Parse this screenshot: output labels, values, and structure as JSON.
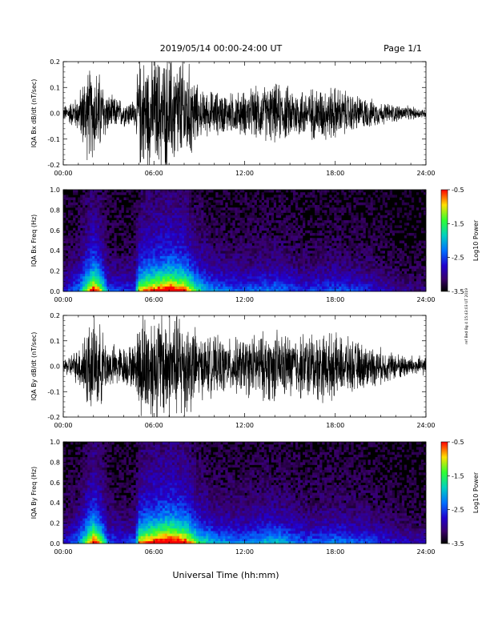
{
  "header": {
    "title": "2019/05/14   00:00-24:00 UT",
    "page": "Page 1/1"
  },
  "side_note": "ref Bed Bg 4 15:43:03 UT 2019",
  "chart_data": [
    {
      "type": "line",
      "ylabel": "IQA Bx dB/dt (nT/sec)",
      "xlim": [
        0,
        24
      ],
      "ylim": [
        -0.2,
        0.2
      ],
      "yticks": [
        "0.2",
        "0.1",
        "0.0",
        "-0.1",
        "-0.2"
      ],
      "xticks": [
        "00:00",
        "06:00",
        "12:00",
        "18:00",
        "24:00"
      ],
      "envelope": {
        "hours": [
          0,
          1,
          1.5,
          2,
          2.3,
          3,
          4,
          4.8,
          5,
          6,
          7,
          8,
          8.5,
          9,
          10,
          11,
          12,
          13,
          14,
          15,
          16,
          17,
          18,
          19,
          20,
          21,
          22,
          23,
          24
        ],
        "amplitude": [
          0.03,
          0.08,
          0.2,
          0.2,
          0.2,
          0.08,
          0.06,
          0.06,
          0.25,
          0.25,
          0.25,
          0.25,
          0.2,
          0.1,
          0.1,
          0.09,
          0.1,
          0.12,
          0.13,
          0.12,
          0.11,
          0.12,
          0.12,
          0.09,
          0.07,
          0.05,
          0.04,
          0.03,
          0.02
        ]
      }
    },
    {
      "type": "heatmap",
      "ylabel": "IQA Bx Freq (Hz)",
      "xlim": [
        0,
        24
      ],
      "ylim": [
        0,
        1.0
      ],
      "yticks": [
        "1.0",
        "0.8",
        "0.6",
        "0.4",
        "0.2",
        "0.0"
      ],
      "xticks": [
        "00:00",
        "06:00",
        "12:00",
        "18:00",
        "24:00"
      ],
      "colorbar": {
        "label": "Log10 Power",
        "range": [
          -3.5,
          -0.5
        ],
        "ticks": [
          "-0.5",
          "-1.5",
          "-2.5",
          "-3.5"
        ]
      },
      "activity": {
        "hours": [
          0,
          1,
          2,
          2.3,
          3,
          4,
          4.8,
          5,
          6,
          7,
          8,
          9,
          10,
          12,
          14,
          16,
          18,
          20,
          22,
          24
        ],
        "level": [
          0.2,
          0.35,
          0.9,
          0.8,
          0.3,
          0.25,
          0.3,
          0.7,
          0.85,
          0.95,
          0.85,
          0.5,
          0.35,
          0.3,
          0.35,
          0.25,
          0.3,
          0.25,
          0.15,
          0.1
        ]
      }
    },
    {
      "type": "line",
      "ylabel": "IQA By dB/dt (nT/sec)",
      "xlim": [
        0,
        24
      ],
      "ylim": [
        -0.2,
        0.2
      ],
      "yticks": [
        "0.2",
        "0.1",
        "0.0",
        "-0.1",
        "-0.2"
      ],
      "xticks": [
        "00:00",
        "06:00",
        "12:00",
        "18:00",
        "24:00"
      ],
      "envelope": {
        "hours": [
          0,
          1,
          1.5,
          2,
          2.3,
          3,
          4,
          4.8,
          5,
          6,
          7,
          8,
          8.5,
          9,
          10,
          11,
          12,
          13,
          14,
          15,
          16,
          17,
          18,
          19,
          20,
          21,
          22,
          23,
          24
        ],
        "amplitude": [
          0.03,
          0.08,
          0.2,
          0.2,
          0.2,
          0.1,
          0.09,
          0.1,
          0.25,
          0.25,
          0.25,
          0.25,
          0.2,
          0.14,
          0.13,
          0.12,
          0.13,
          0.15,
          0.16,
          0.14,
          0.15,
          0.16,
          0.14,
          0.12,
          0.1,
          0.08,
          0.06,
          0.05,
          0.04
        ]
      }
    },
    {
      "type": "heatmap",
      "ylabel": "IQA By Freq (Hz)",
      "xlim": [
        0,
        24
      ],
      "ylim": [
        0,
        1.0
      ],
      "yticks": [
        "1.0",
        "0.8",
        "0.6",
        "0.4",
        "0.2",
        "0.0"
      ],
      "xticks": [
        "00:00",
        "06:00",
        "12:00",
        "18:00",
        "24:00"
      ],
      "colorbar": {
        "label": "Log10 Power",
        "range": [
          -3.5,
          -0.5
        ],
        "ticks": [
          "-0.5",
          "-1.5",
          "-2.5",
          "-3.5"
        ]
      },
      "activity": {
        "hours": [
          0,
          1,
          2,
          2.3,
          3,
          4,
          4.8,
          5,
          6,
          7,
          8,
          9,
          10,
          12,
          14,
          16,
          18,
          20,
          22,
          24
        ],
        "level": [
          0.2,
          0.35,
          0.9,
          0.8,
          0.3,
          0.25,
          0.3,
          0.75,
          0.9,
          1.0,
          0.9,
          0.55,
          0.4,
          0.35,
          0.45,
          0.3,
          0.35,
          0.3,
          0.2,
          0.15
        ]
      }
    }
  ],
  "xlabel": "Universal Time (hh:mm)"
}
